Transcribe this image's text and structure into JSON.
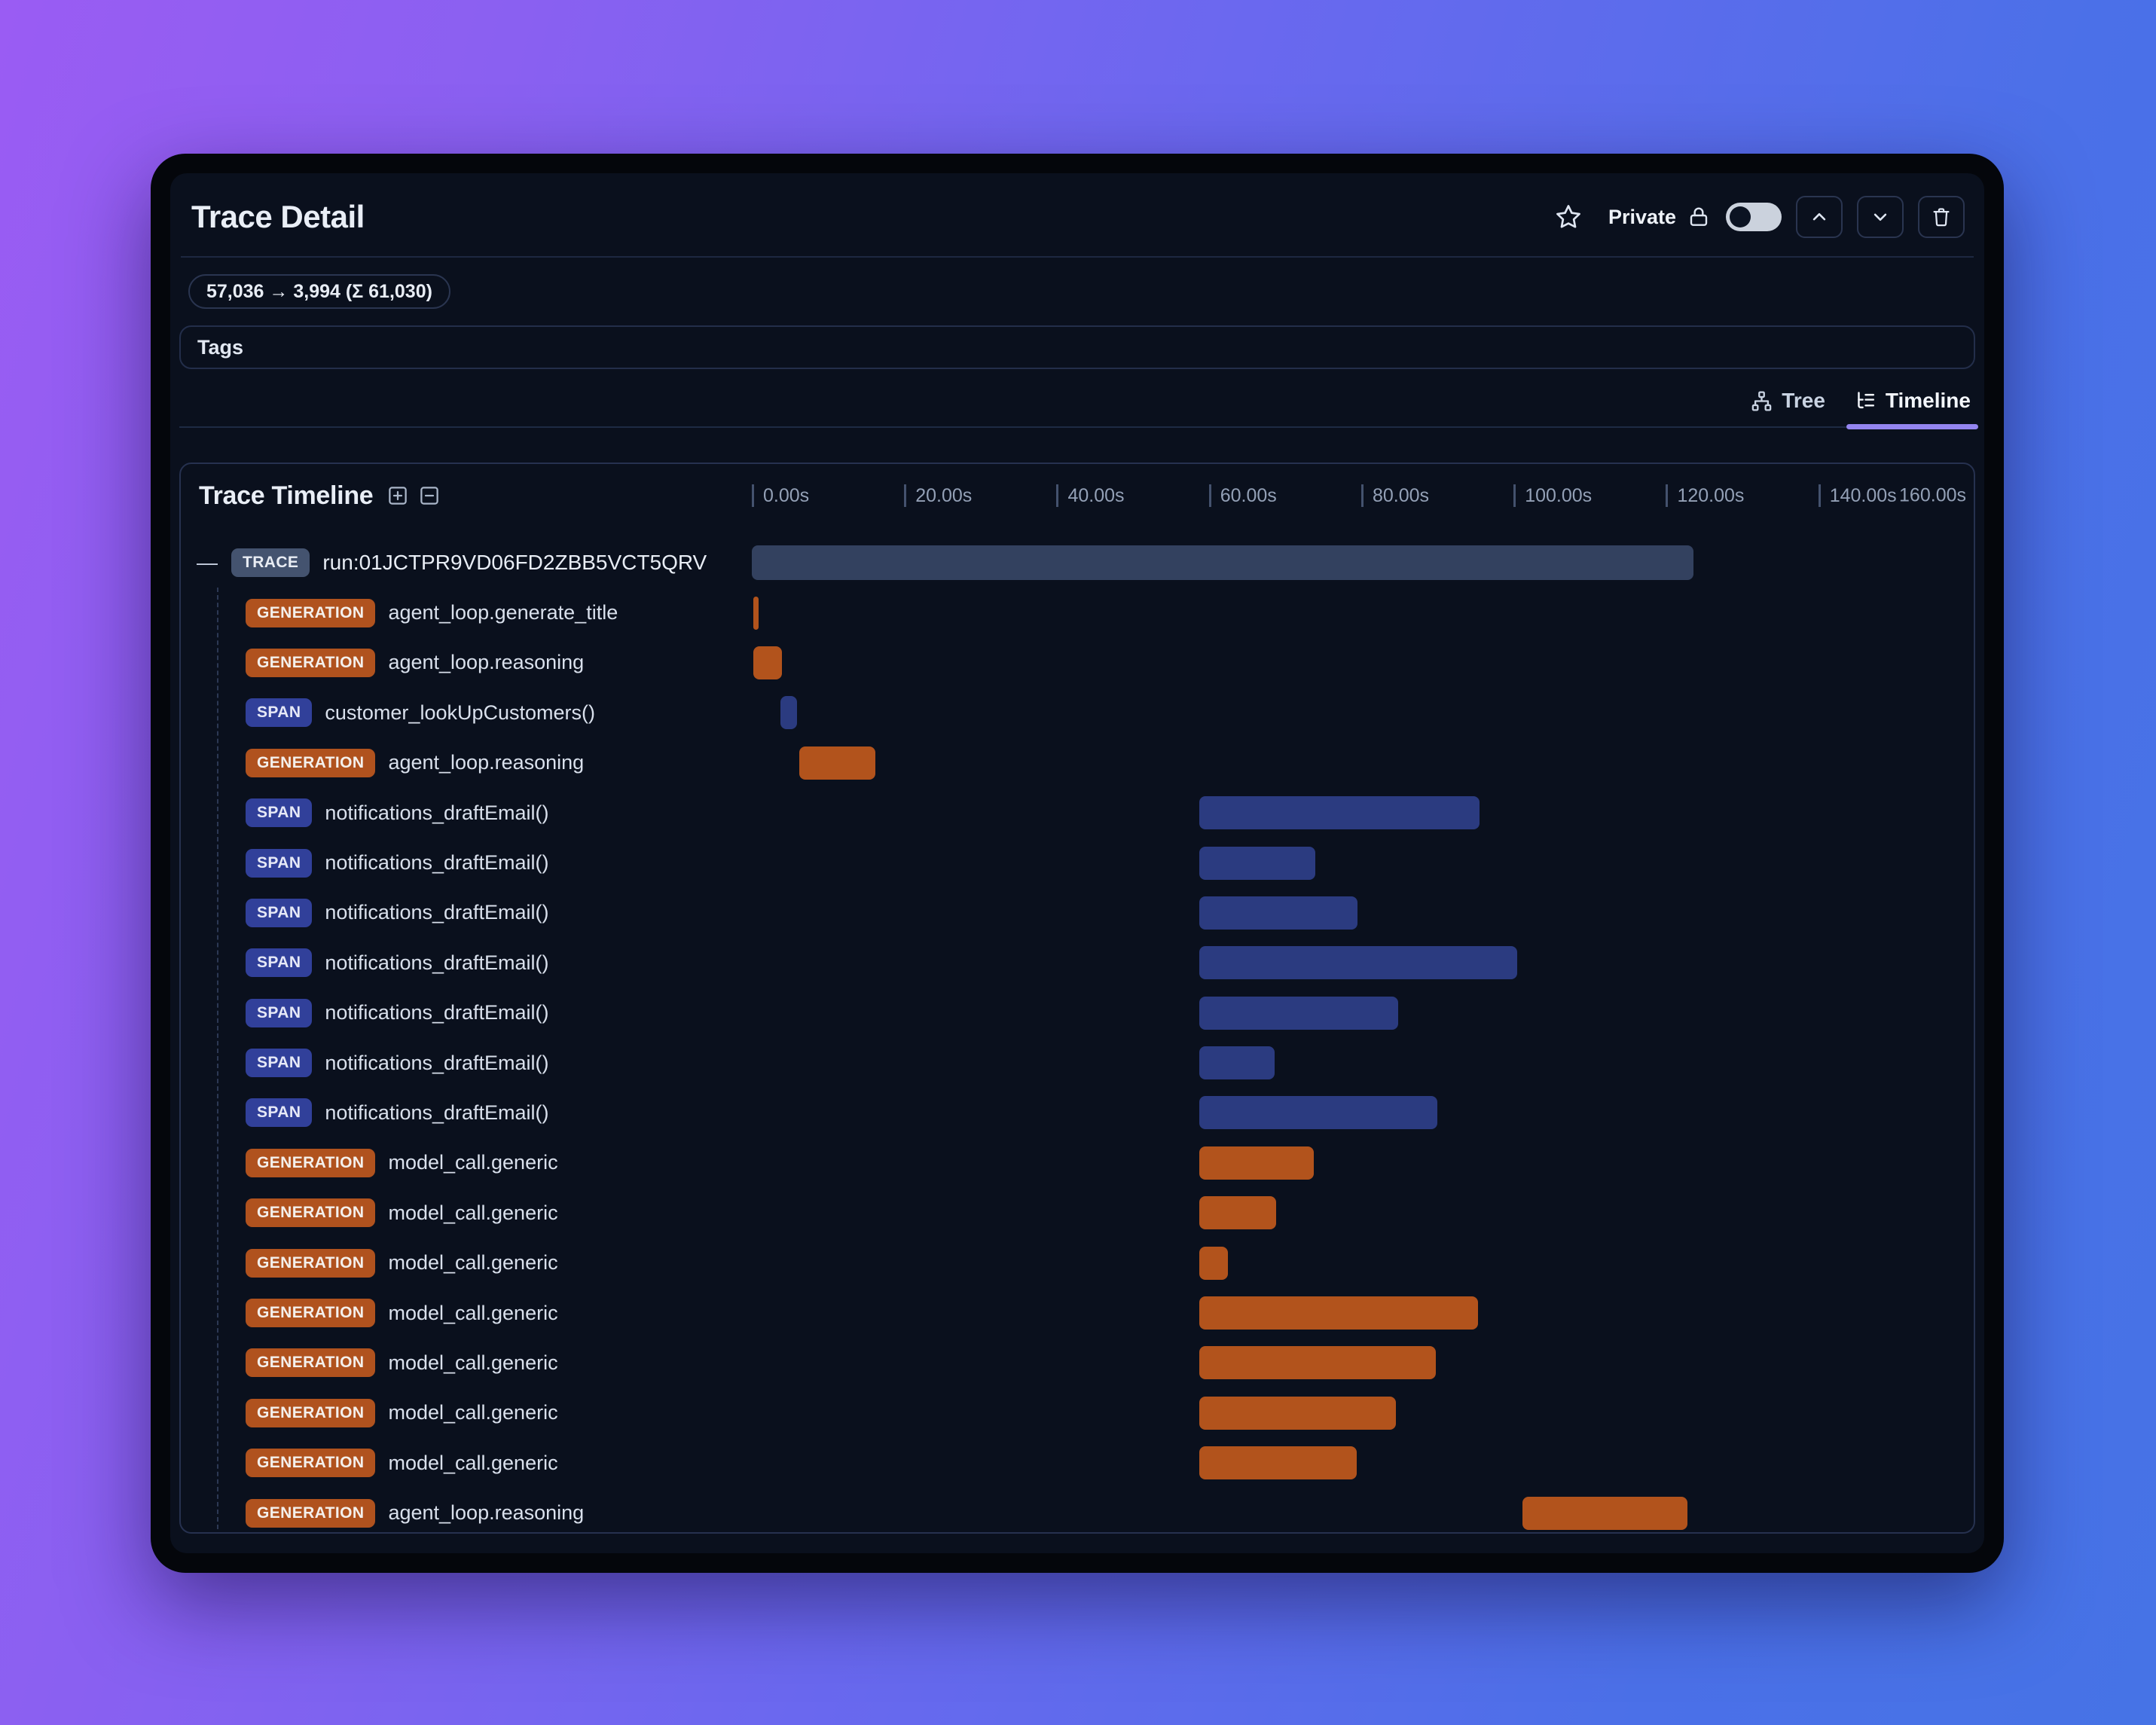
{
  "header": {
    "title": "Trace Detail",
    "privacy_label": "Private",
    "privacy_toggle_on": false,
    "token_badge": "57,036 → 3,994 (Σ 61,030)",
    "tags_label": "Tags",
    "action_icons": [
      "star-outline",
      "lock",
      "chevron-up",
      "chevron-down",
      "trash"
    ]
  },
  "tabs": {
    "tree": {
      "label": "Tree",
      "icon": "org-tree-icon",
      "active": false
    },
    "timeline": {
      "label": "Timeline",
      "icon": "list-tree-icon",
      "active": true
    }
  },
  "timeline_section": {
    "title": "Trace Timeline",
    "controls": [
      "expand-all-icon",
      "collapse-all-icon"
    ]
  },
  "colors": {
    "background_gradient": [
      "#9a5cf3",
      "#4673e6"
    ],
    "window_frame": "#04060b",
    "content_bg": "#0a101d",
    "tab_underline_accent": "#9485f0",
    "trace_badge": "#44536f",
    "generation_badge": "#b0521e",
    "span_badge": "#31409a",
    "trace_bar": "#33415f",
    "generation_bar": "#b2531c",
    "span_bar": "#2b3b80"
  },
  "chart_data": {
    "type": "timeline",
    "title": "Trace Timeline",
    "x_unit": "seconds",
    "x_max": 160.4,
    "grid": false,
    "x_ticks": [
      {
        "t": 0,
        "label": "0.00s"
      },
      {
        "t": 20,
        "label": "20.00s"
      },
      {
        "t": 40,
        "label": "40.00s"
      },
      {
        "t": 60,
        "label": "60.00s"
      },
      {
        "t": 80,
        "label": "80.00s"
      },
      {
        "t": 100,
        "label": "100.00s"
      },
      {
        "t": 120,
        "label": "120.00s"
      },
      {
        "t": 140,
        "label": "140.00s"
      },
      {
        "t": 160,
        "label": "160.00s"
      }
    ],
    "rows": [
      {
        "type": "TRACE",
        "label": "run:01JCTPR9VD06FD2ZBB5VCT5QRV",
        "start": 0,
        "end": 123.6,
        "level": 0
      },
      {
        "type": "GENERATION",
        "label": "agent_loop.generate_title",
        "start": 0.2,
        "end": 0.9,
        "level": 1
      },
      {
        "type": "GENERATION",
        "label": "agent_loop.reasoning",
        "start": 0.2,
        "end": 4.0,
        "level": 1
      },
      {
        "type": "SPAN",
        "label": "customer_lookUpCustomers()",
        "start": 3.8,
        "end": 5.9,
        "level": 1
      },
      {
        "type": "GENERATION",
        "label": "agent_loop.reasoning",
        "start": 6.2,
        "end": 16.2,
        "level": 1
      },
      {
        "type": "SPAN",
        "label": "notifications_draftEmail()",
        "start": 58.7,
        "end": 95.5,
        "level": 1
      },
      {
        "type": "SPAN",
        "label": "notifications_draftEmail()",
        "start": 58.7,
        "end": 74.0,
        "level": 1
      },
      {
        "type": "SPAN",
        "label": "notifications_draftEmail()",
        "start": 58.7,
        "end": 79.5,
        "level": 1
      },
      {
        "type": "SPAN",
        "label": "notifications_draftEmail()",
        "start": 58.7,
        "end": 100.5,
        "level": 1
      },
      {
        "type": "SPAN",
        "label": "notifications_draftEmail()",
        "start": 58.7,
        "end": 84.8,
        "level": 1
      },
      {
        "type": "SPAN",
        "label": "notifications_draftEmail()",
        "start": 58.7,
        "end": 68.6,
        "level": 1
      },
      {
        "type": "SPAN",
        "label": "notifications_draftEmail()",
        "start": 58.7,
        "end": 90.0,
        "level": 1
      },
      {
        "type": "GENERATION",
        "label": "model_call.generic",
        "start": 58.7,
        "end": 73.8,
        "level": 1
      },
      {
        "type": "GENERATION",
        "label": "model_call.generic",
        "start": 58.7,
        "end": 68.8,
        "level": 1
      },
      {
        "type": "GENERATION",
        "label": "model_call.generic",
        "start": 58.7,
        "end": 62.5,
        "level": 1
      },
      {
        "type": "GENERATION",
        "label": "model_call.generic",
        "start": 58.7,
        "end": 95.3,
        "level": 1
      },
      {
        "type": "GENERATION",
        "label": "model_call.generic",
        "start": 58.7,
        "end": 89.8,
        "level": 1
      },
      {
        "type": "GENERATION",
        "label": "model_call.generic",
        "start": 58.7,
        "end": 84.6,
        "level": 1
      },
      {
        "type": "GENERATION",
        "label": "model_call.generic",
        "start": 58.7,
        "end": 79.4,
        "level": 1
      },
      {
        "type": "GENERATION",
        "label": "agent_loop.reasoning",
        "start": 101.2,
        "end": 122.8,
        "level": 1
      }
    ]
  }
}
